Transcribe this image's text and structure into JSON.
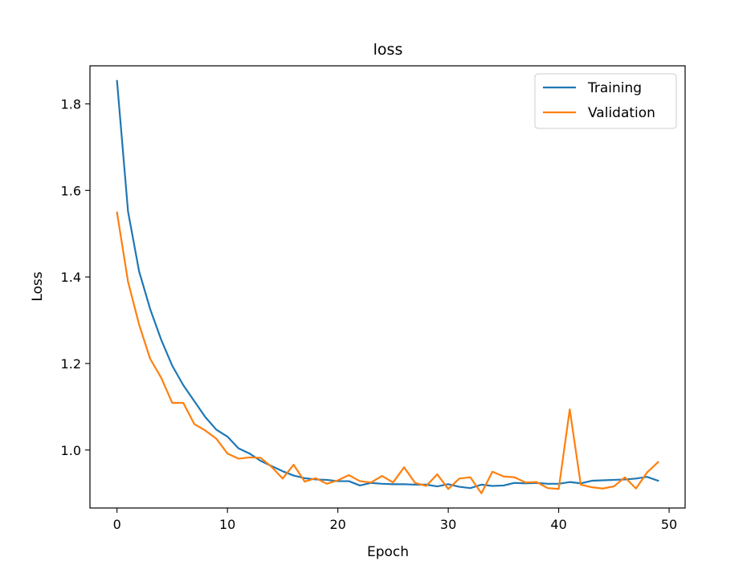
{
  "chart_data": {
    "type": "line",
    "title": "loss",
    "xlabel": "Epoch",
    "ylabel": "Loss",
    "xlim": [
      -2.45,
      51.45
    ],
    "ylim": [
      0.866,
      1.888
    ],
    "xticks": [
      0,
      10,
      20,
      30,
      40,
      50
    ],
    "yticks": [
      1.0,
      1.2,
      1.4,
      1.6,
      1.8
    ],
    "xtick_labels": [
      "0",
      "10",
      "20",
      "30",
      "40",
      "50"
    ],
    "ytick_labels": [
      "1.0",
      "1.2",
      "1.4",
      "1.6",
      "1.8"
    ],
    "grid": false,
    "legend_position": "top-right",
    "x": [
      0,
      1,
      2,
      3,
      4,
      5,
      6,
      7,
      8,
      9,
      10,
      11,
      12,
      13,
      14,
      15,
      16,
      17,
      18,
      19,
      20,
      21,
      22,
      23,
      24,
      25,
      26,
      27,
      28,
      29,
      30,
      31,
      32,
      33,
      34,
      35,
      36,
      37,
      38,
      39,
      40,
      41,
      42,
      43,
      44,
      45,
      46,
      47,
      48,
      49
    ],
    "series": [
      {
        "name": "Training",
        "color": "#1f77b4",
        "values": [
          1.853,
          1.551,
          1.413,
          1.326,
          1.255,
          1.195,
          1.15,
          1.113,
          1.076,
          1.047,
          1.031,
          1.004,
          0.992,
          0.975,
          0.963,
          0.951,
          0.941,
          0.935,
          0.932,
          0.931,
          0.928,
          0.928,
          0.918,
          0.924,
          0.922,
          0.921,
          0.921,
          0.92,
          0.92,
          0.916,
          0.921,
          0.915,
          0.912,
          0.92,
          0.917,
          0.918,
          0.924,
          0.923,
          0.924,
          0.922,
          0.922,
          0.926,
          0.923,
          0.929,
          0.93,
          0.931,
          0.932,
          0.934,
          0.938,
          0.929
        ]
      },
      {
        "name": "Validation",
        "color": "#ff7f0e",
        "values": [
          1.549,
          1.389,
          1.29,
          1.211,
          1.167,
          1.109,
          1.109,
          1.06,
          1.045,
          1.026,
          0.992,
          0.98,
          0.983,
          0.982,
          0.961,
          0.934,
          0.966,
          0.927,
          0.935,
          0.922,
          0.93,
          0.942,
          0.928,
          0.925,
          0.94,
          0.925,
          0.96,
          0.924,
          0.917,
          0.944,
          0.91,
          0.934,
          0.937,
          0.9,
          0.95,
          0.939,
          0.937,
          0.925,
          0.926,
          0.912,
          0.91,
          1.094,
          0.92,
          0.914,
          0.911,
          0.916,
          0.937,
          0.911,
          0.948,
          0.972
        ]
      }
    ]
  }
}
